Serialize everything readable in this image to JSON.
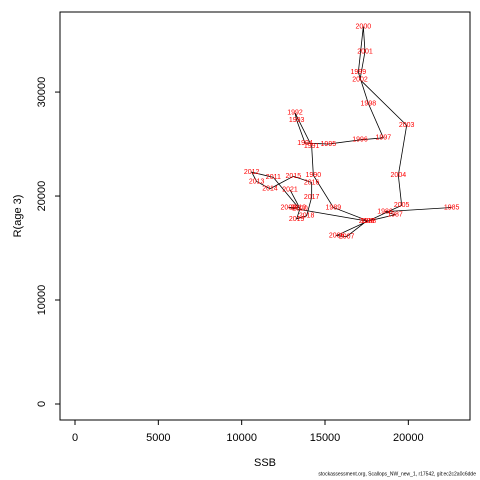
{
  "chart_data": {
    "type": "line",
    "x_label": "SSB",
    "y_label": "R(age 3)",
    "caption": "stockassessment.org, Scallops_NW_new_1, r17542, git:ec2c2a0c6dde",
    "xlim": [
      -900,
      23700
    ],
    "ylim": [
      -1540,
      37700
    ],
    "xticks": [
      0,
      5000,
      10000,
      15000,
      20000
    ],
    "yticks": [
      0,
      10000,
      20000,
      30000
    ],
    "line_color": "#000000",
    "label_color": "#ff0000",
    "labels": [
      "1985",
      "1986",
      "1987",
      "1988",
      "1989",
      "1990",
      "1991",
      "1992",
      "1993",
      "1994",
      "1995",
      "1996",
      "1997",
      "1998",
      "1999",
      "2000",
      "2001",
      "2002",
      "2003",
      "2004",
      "2005",
      "2006",
      "2007",
      "2008",
      "2009",
      "2010",
      "2011",
      "2012",
      "2013",
      "2014",
      "2015",
      "2016",
      "2017",
      "2018",
      "2019",
      "2020",
      "2021"
    ],
    "x": [
      22600,
      18600,
      19200,
      17600,
      15500,
      14300,
      14200,
      13200,
      13300,
      13800,
      15200,
      17100,
      18500,
      17600,
      17000,
      17300,
      17400,
      17100,
      19900,
      19400,
      19600,
      15700,
      16300,
      17500,
      12800,
      13400,
      11900,
      10600,
      10900,
      11700,
      13100,
      14200,
      14200,
      13900,
      13300,
      13500,
      12900
    ],
    "values": [
      18900,
      18500,
      18200,
      17600,
      18900,
      22000,
      24800,
      28000,
      27300,
      25100,
      25000,
      25400,
      25600,
      28900,
      31900,
      36300,
      33900,
      31200,
      26800,
      22000,
      19100,
      16200,
      16100,
      17600,
      18900,
      18900,
      21800,
      22300,
      21400,
      20700,
      21900,
      21300,
      19900,
      18100,
      17800,
      18800,
      20600
    ]
  }
}
